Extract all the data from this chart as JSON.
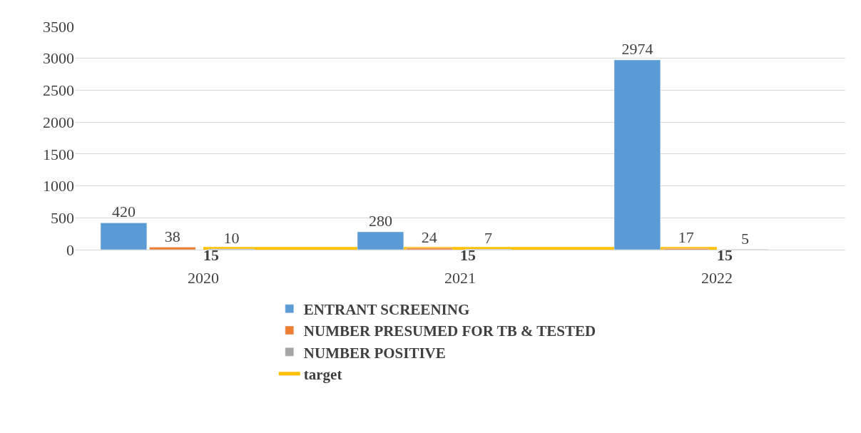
{
  "chart_data": {
    "type": "bar",
    "categories": [
      "2020",
      "2021",
      "2022"
    ],
    "series": [
      {
        "name": "ENTRANT SCREENING",
        "color": "#5b9bd5",
        "values": [
          420,
          280,
          2974
        ]
      },
      {
        "name": "NUMBER PRESUMED FOR TB & TESTED",
        "color": "#ed7d31",
        "values": [
          38,
          24,
          17
        ]
      },
      {
        "name": "NUMBER POSITIVE",
        "color": "#a5a5a5",
        "values": [
          10,
          7,
          5
        ]
      },
      {
        "name": "target",
        "type": "line",
        "color": "#ffc000",
        "values": [
          15,
          15,
          15
        ]
      }
    ],
    "ylim": [
      0,
      3500
    ],
    "yticks": [
      0,
      500,
      1000,
      1500,
      2000,
      2500,
      3000,
      3500
    ],
    "grid": "y",
    "legend": "bottom",
    "data_labels": true,
    "marker": "none"
  }
}
